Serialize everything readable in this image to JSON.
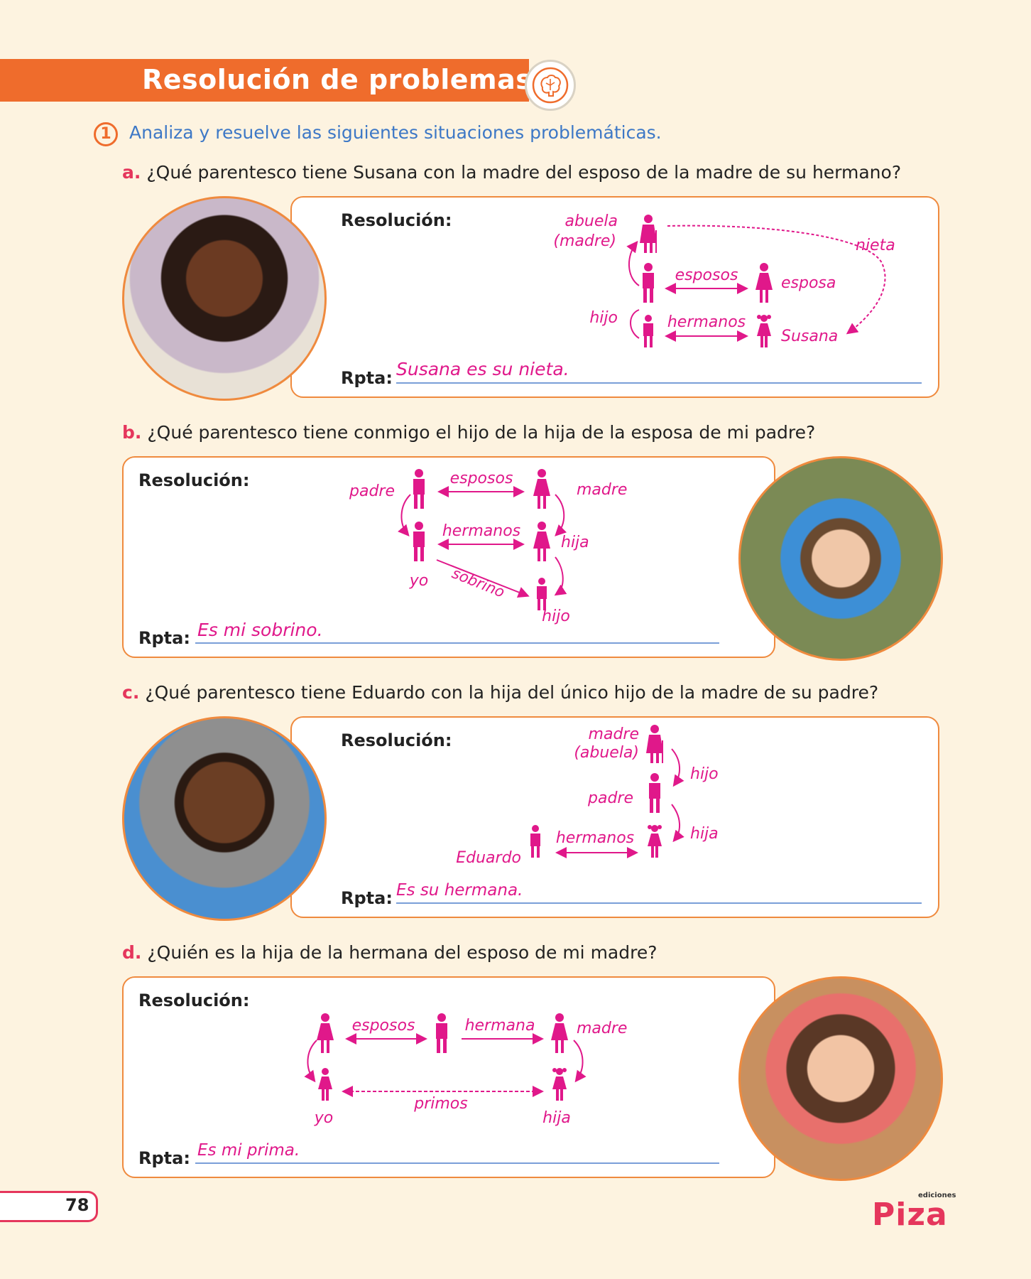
{
  "header": {
    "title": "Resolución de problemas",
    "badge_icon": "brain-icon"
  },
  "exercise": {
    "number": "1",
    "instruction": "Analiza y resuelve las siguientes situaciones problemáticas."
  },
  "labels": {
    "resolution": "Resolución:",
    "answer": "Rpta:"
  },
  "problems": [
    {
      "letter": "a.",
      "question": "¿Qué parentesco tiene Susana con la madre del esposo de la madre de su hermano?",
      "answer": "Susana es su nieta.",
      "diagram": {
        "abuela": "abuela",
        "madre": "(madre)",
        "nieta": "nieta",
        "esposos": "esposos",
        "esposa": "esposa",
        "hijo": "hijo",
        "hermanos": "hermanos",
        "susana": "Susana"
      }
    },
    {
      "letter": "b.",
      "question": "¿Qué parentesco tiene conmigo el hijo de la hija de la esposa de mi padre?",
      "answer": "Es mi sobrino.",
      "diagram": {
        "padre": "padre",
        "esposos": "esposos",
        "madre": "madre",
        "hermanos": "hermanos",
        "hija": "hija",
        "yo": "yo",
        "sobrino": "sobrino",
        "hijo": "hijo"
      }
    },
    {
      "letter": "c.",
      "question": "¿Qué parentesco tiene Eduardo con la hija del único hijo de la madre de su padre?",
      "answer": "Es su hermana.",
      "diagram": {
        "madre": "madre",
        "abuela": "(abuela)",
        "hijo": "hijo",
        "padre": "padre",
        "hija": "hija",
        "hermanos": "hermanos",
        "eduardo": "Eduardo"
      }
    },
    {
      "letter": "d.",
      "question": "¿Quién es la hija de la hermana del esposo de mi madre?",
      "answer": "Es mi prima.",
      "diagram": {
        "esposos": "esposos",
        "hermana": "hermana",
        "madre": "madre",
        "primos": "primos",
        "yo": "yo",
        "hija": "hija"
      }
    }
  ],
  "footer": {
    "page_number": "78",
    "logo_top": "ediciones",
    "logo_main": "Piza"
  },
  "colors": {
    "accent": "#ef6c2c",
    "diagram": "#e0188a",
    "instruction": "#3d78c6",
    "letter": "#e5365c"
  }
}
